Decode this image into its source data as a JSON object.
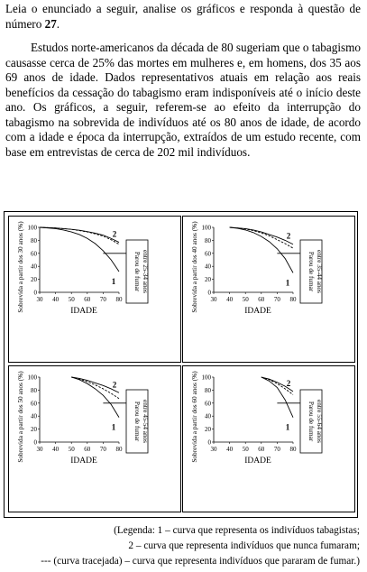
{
  "intro": {
    "text": "Leia o enunciado a seguir, analise os gráficos e responda à questão de número ",
    "number": "27",
    "end": "."
  },
  "paragraph": "Estudos norte-americanos da década de 80 sugeriam que o tabagismo causasse cerca de 25% das mortes em mulheres e, em homens, dos 35 aos 69 anos de idade. Dados representativos atuais em relação aos reais benefícios da cessação do tabagismo eram indisponíveis até o início deste ano. Os gráficos, a seguir, referem-se ao efeito da interrupção do tabagismo na sobrevida de indivíduos até os 80 anos de idade, de acordo com a idade e época da interrupção, extraídos de um estudo recente, com base em entrevistas de cerca de 202 mil indivíduos.",
  "chart_data": [
    {
      "type": "line",
      "ylabel": "Sobrevida a partir dos 30 anos (%)",
      "xlabel": "IDADE",
      "annotation": [
        "Parou de fumar",
        "entre 25-34 anos"
      ],
      "xlim": [
        30,
        80
      ],
      "ylim": [
        0,
        100
      ],
      "xticks": [
        30,
        40,
        50,
        60,
        70,
        80
      ],
      "yticks": [
        0,
        20,
        40,
        60,
        80,
        100
      ],
      "x": [
        30,
        35,
        40,
        45,
        50,
        55,
        60,
        65,
        70,
        75,
        80
      ],
      "series": [
        {
          "name": "2",
          "color": "#000",
          "values": [
            100,
            99.5,
            99,
            98,
            97,
            95.5,
            93.5,
            91,
            88,
            83,
            77
          ]
        },
        {
          "name": "1",
          "color": "#000",
          "values": [
            100,
            99,
            98,
            96,
            93,
            89,
            83,
            75,
            64,
            50,
            32
          ]
        },
        {
          "color": "#000",
          "dashed": true,
          "values": [
            100,
            99.5,
            99,
            98,
            97,
            95,
            93,
            90,
            86.5,
            81,
            74
          ]
        }
      ]
    },
    {
      "type": "line",
      "ylabel": "Sobrevida a partir dos 40 anos (%)",
      "xlabel": "IDADE",
      "annotation": [
        "Parou de fumar",
        "entre 35-44 anos"
      ],
      "xlim": [
        30,
        80
      ],
      "ylim": [
        0,
        100
      ],
      "xticks": [
        30,
        40,
        50,
        60,
        70,
        80
      ],
      "yticks": [
        0,
        20,
        40,
        60,
        80,
        100
      ],
      "x": [
        40,
        45,
        50,
        55,
        60,
        65,
        70,
        75,
        80
      ],
      "series": [
        {
          "name": "2",
          "color": "#000",
          "values": [
            100,
            99,
            98,
            96,
            93,
            89,
            85,
            80,
            74
          ]
        },
        {
          "name": "1",
          "color": "#000",
          "values": [
            100,
            98.5,
            96,
            92,
            86,
            78,
            67,
            52,
            30
          ]
        },
        {
          "color": "#000",
          "dashed": true,
          "values": [
            100,
            99,
            97.5,
            95,
            91.5,
            87,
            81,
            75,
            68
          ]
        }
      ]
    },
    {
      "type": "line",
      "ylabel": "Sobrevida a partir dos 50 anos (%)",
      "xlabel": "IDADE",
      "annotation": [
        "Parou de fumar",
        "entre 45-54 anos"
      ],
      "xlim": [
        30,
        80
      ],
      "ylim": [
        0,
        100
      ],
      "xticks": [
        30,
        40,
        50,
        60,
        70,
        80
      ],
      "yticks": [
        0,
        20,
        40,
        60,
        80,
        100
      ],
      "x": [
        50,
        55,
        60,
        65,
        70,
        75,
        80
      ],
      "series": [
        {
          "name": "2",
          "color": "#000",
          "values": [
            100,
            98,
            95,
            91,
            87,
            82,
            76
          ]
        },
        {
          "name": "1",
          "color": "#000",
          "values": [
            100,
            96,
            90,
            82,
            72,
            58,
            38
          ]
        },
        {
          "color": "#000",
          "dashed": true,
          "values": [
            100,
            97,
            93,
            88,
            82,
            75,
            67
          ]
        }
      ]
    },
    {
      "type": "line",
      "ylabel": "Sobrevida a partir dos 60 anos (%)",
      "xlabel": "IDADE",
      "annotation": [
        "Parou de fumar",
        "entre 55-64 anos"
      ],
      "xlim": [
        30,
        80
      ],
      "ylim": [
        0,
        100
      ],
      "xticks": [
        30,
        40,
        50,
        60,
        70,
        80
      ],
      "yticks": [
        0,
        20,
        40,
        60,
        80,
        100
      ],
      "x": [
        60,
        65,
        70,
        75,
        80
      ],
      "series": [
        {
          "name": "2",
          "color": "#000",
          "values": [
            100,
            97,
            92,
            86,
            78
          ]
        },
        {
          "name": "1",
          "color": "#000",
          "values": [
            100,
            94,
            84,
            65,
            38
          ]
        },
        {
          "color": "#000",
          "dashed": true,
          "values": [
            100,
            96,
            90,
            82,
            73
          ]
        }
      ]
    }
  ],
  "legend": [
    "(Legenda: 1 – curva que representa os indivíduos tabagistas;",
    "2 – curva que representa indivíduos que nunca fumaram;",
    "--- (curva tracejada) – curva que representa indivíduos que pararam de fumar.)"
  ]
}
